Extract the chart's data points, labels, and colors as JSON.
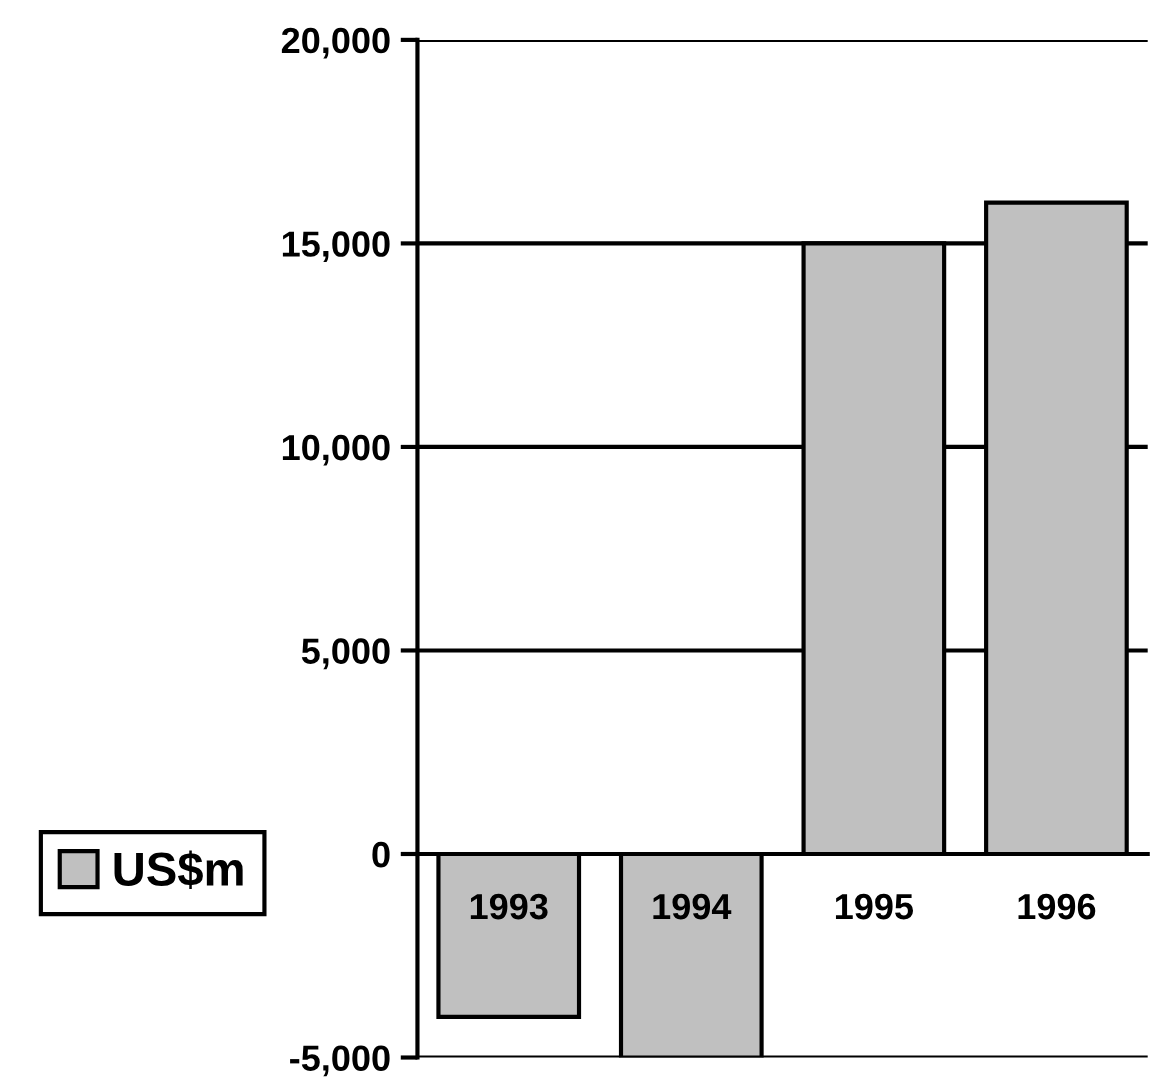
{
  "chart_data": {
    "type": "bar",
    "categories": [
      "1993",
      "1994",
      "1995",
      "1996"
    ],
    "series": [
      {
        "name": "US$m",
        "color": "#c0c0c0",
        "values": [
          -4000,
          -5000,
          15000,
          16000
        ]
      }
    ],
    "ylim": [
      -5000,
      20000
    ],
    "yticks": [
      {
        "value": -5000,
        "label": "-5,000"
      },
      0,
      {
        "value": 5000,
        "label": "5,000"
      },
      {
        "value": 10000,
        "label": "10,000"
      },
      {
        "value": 15000,
        "label": "15,000"
      },
      {
        "value": 20000,
        "label": "20,000"
      }
    ],
    "grid": "y",
    "legend": "left"
  }
}
